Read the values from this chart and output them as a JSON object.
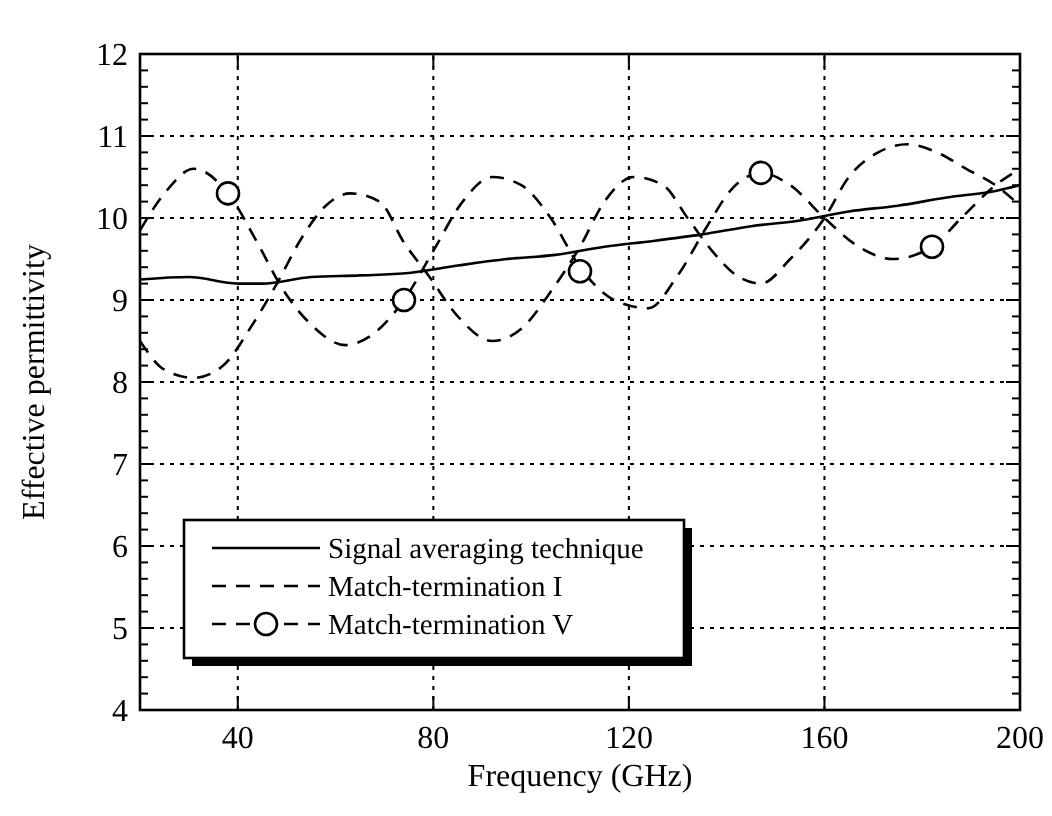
{
  "chart_data": {
    "type": "line",
    "xlabel": "Frequency (GHz)",
    "ylabel": "Effective permittivity",
    "xlim": [
      20,
      200
    ],
    "xticks": [
      40,
      80,
      120,
      160,
      200
    ],
    "ylim": [
      4,
      12
    ],
    "yticks": [
      4,
      {
        "value": 4.2,
        "label": null
      },
      {
        "value": 4.4,
        "label": null
      },
      {
        "value": 4.6,
        "label": null
      },
      {
        "value": 4.8,
        "label": null
      },
      5,
      {
        "value": 5.2,
        "label": null
      },
      {
        "value": 5.4,
        "label": null
      },
      {
        "value": 5.6,
        "label": null
      },
      {
        "value": 5.8,
        "label": null
      },
      6,
      {
        "value": 6.2,
        "label": null
      },
      {
        "value": 6.4,
        "label": null
      },
      {
        "value": 6.6,
        "label": null
      },
      {
        "value": 6.8,
        "label": null
      },
      7,
      {
        "value": 7.2,
        "label": null
      },
      {
        "value": 7.4,
        "label": null
      },
      {
        "value": 7.6,
        "label": null
      },
      {
        "value": 7.8,
        "label": null
      },
      8,
      {
        "value": 8.2,
        "label": null
      },
      {
        "value": 8.4,
        "label": null
      },
      {
        "value": 8.6,
        "label": null
      },
      {
        "value": 8.8,
        "label": null
      },
      9,
      {
        "value": 9.2,
        "label": null
      },
      {
        "value": 9.4,
        "label": null
      },
      {
        "value": 9.6,
        "label": null
      },
      {
        "value": 9.8,
        "label": null
      },
      10,
      {
        "value": 10.2,
        "label": null
      },
      {
        "value": 10.4,
        "label": null
      },
      {
        "value": 10.6,
        "label": null
      },
      {
        "value": 10.8,
        "label": null
      },
      11,
      {
        "value": 11.2,
        "label": null
      },
      {
        "value": 11.4,
        "label": null
      },
      {
        "value": 11.6,
        "label": null
      },
      {
        "value": 11.8,
        "label": null
      },
      12
    ],
    "grid": true,
    "legend": "bottom left",
    "series": [
      {
        "name": "Signal averaging technique",
        "color": "#000000",
        "line_style": "solid",
        "marker": "none",
        "x": [
          20,
          30,
          40,
          45,
          55,
          65,
          75,
          85,
          95,
          105,
          115,
          125,
          135,
          145,
          155,
          165,
          175,
          185,
          195,
          200
        ],
        "values": [
          9.25,
          9.28,
          9.2,
          9.2,
          9.28,
          9.3,
          9.33,
          9.42,
          9.5,
          9.55,
          9.65,
          9.72,
          9.8,
          9.9,
          9.97,
          10.08,
          10.15,
          10.25,
          10.33,
          10.4
        ]
      },
      {
        "name": "Match-termination I",
        "color": "#000000",
        "line_style": "dashed",
        "marker": "none",
        "x": [
          20,
          25,
          31,
          37,
          43,
          48,
          53,
          58,
          63,
          69,
          74,
          79,
          85,
          92,
          98,
          104,
          110,
          115,
          121,
          127,
          132,
          137,
          142,
          147,
          153,
          160,
          165,
          171,
          177,
          183,
          189,
          195,
          200
        ],
        "values": [
          8.5,
          8.15,
          8.05,
          8.2,
          8.7,
          9.2,
          9.75,
          10.15,
          10.3,
          10.2,
          9.7,
          9.3,
          8.8,
          8.5,
          8.65,
          9.1,
          9.65,
          10.2,
          10.5,
          10.4,
          10.0,
          9.6,
          9.3,
          9.2,
          9.5,
          10.0,
          10.5,
          10.8,
          10.9,
          10.8,
          10.6,
          10.4,
          10.15
        ]
      },
      {
        "name": "Match-termination V",
        "color": "#000000",
        "line_style": "dashed",
        "marker": "none",
        "x": [
          20,
          25,
          31,
          38,
          44,
          49,
          55,
          62,
          68,
          74,
          80,
          86,
          92,
          98,
          104,
          110,
          117,
          124,
          130,
          136,
          141,
          147,
          153,
          160,
          167,
          174,
          182,
          188,
          195,
          200
        ],
        "values": [
          9.85,
          10.3,
          10.6,
          10.3,
          9.7,
          9.15,
          8.7,
          8.45,
          8.6,
          9.0,
          9.6,
          10.2,
          10.5,
          10.4,
          10.0,
          9.4,
          9.0,
          8.9,
          9.3,
          9.9,
          10.35,
          10.55,
          10.4,
          10.0,
          9.65,
          9.5,
          9.65,
          10.0,
          10.4,
          10.6
        ]
      },
      {
        "type": "scatter",
        "color": "#000000",
        "marker": "circle",
        "x": [
          38,
          74,
          110,
          147,
          182
        ],
        "values": [
          10.3,
          9.0,
          9.35,
          10.55,
          9.65
        ]
      }
    ]
  }
}
